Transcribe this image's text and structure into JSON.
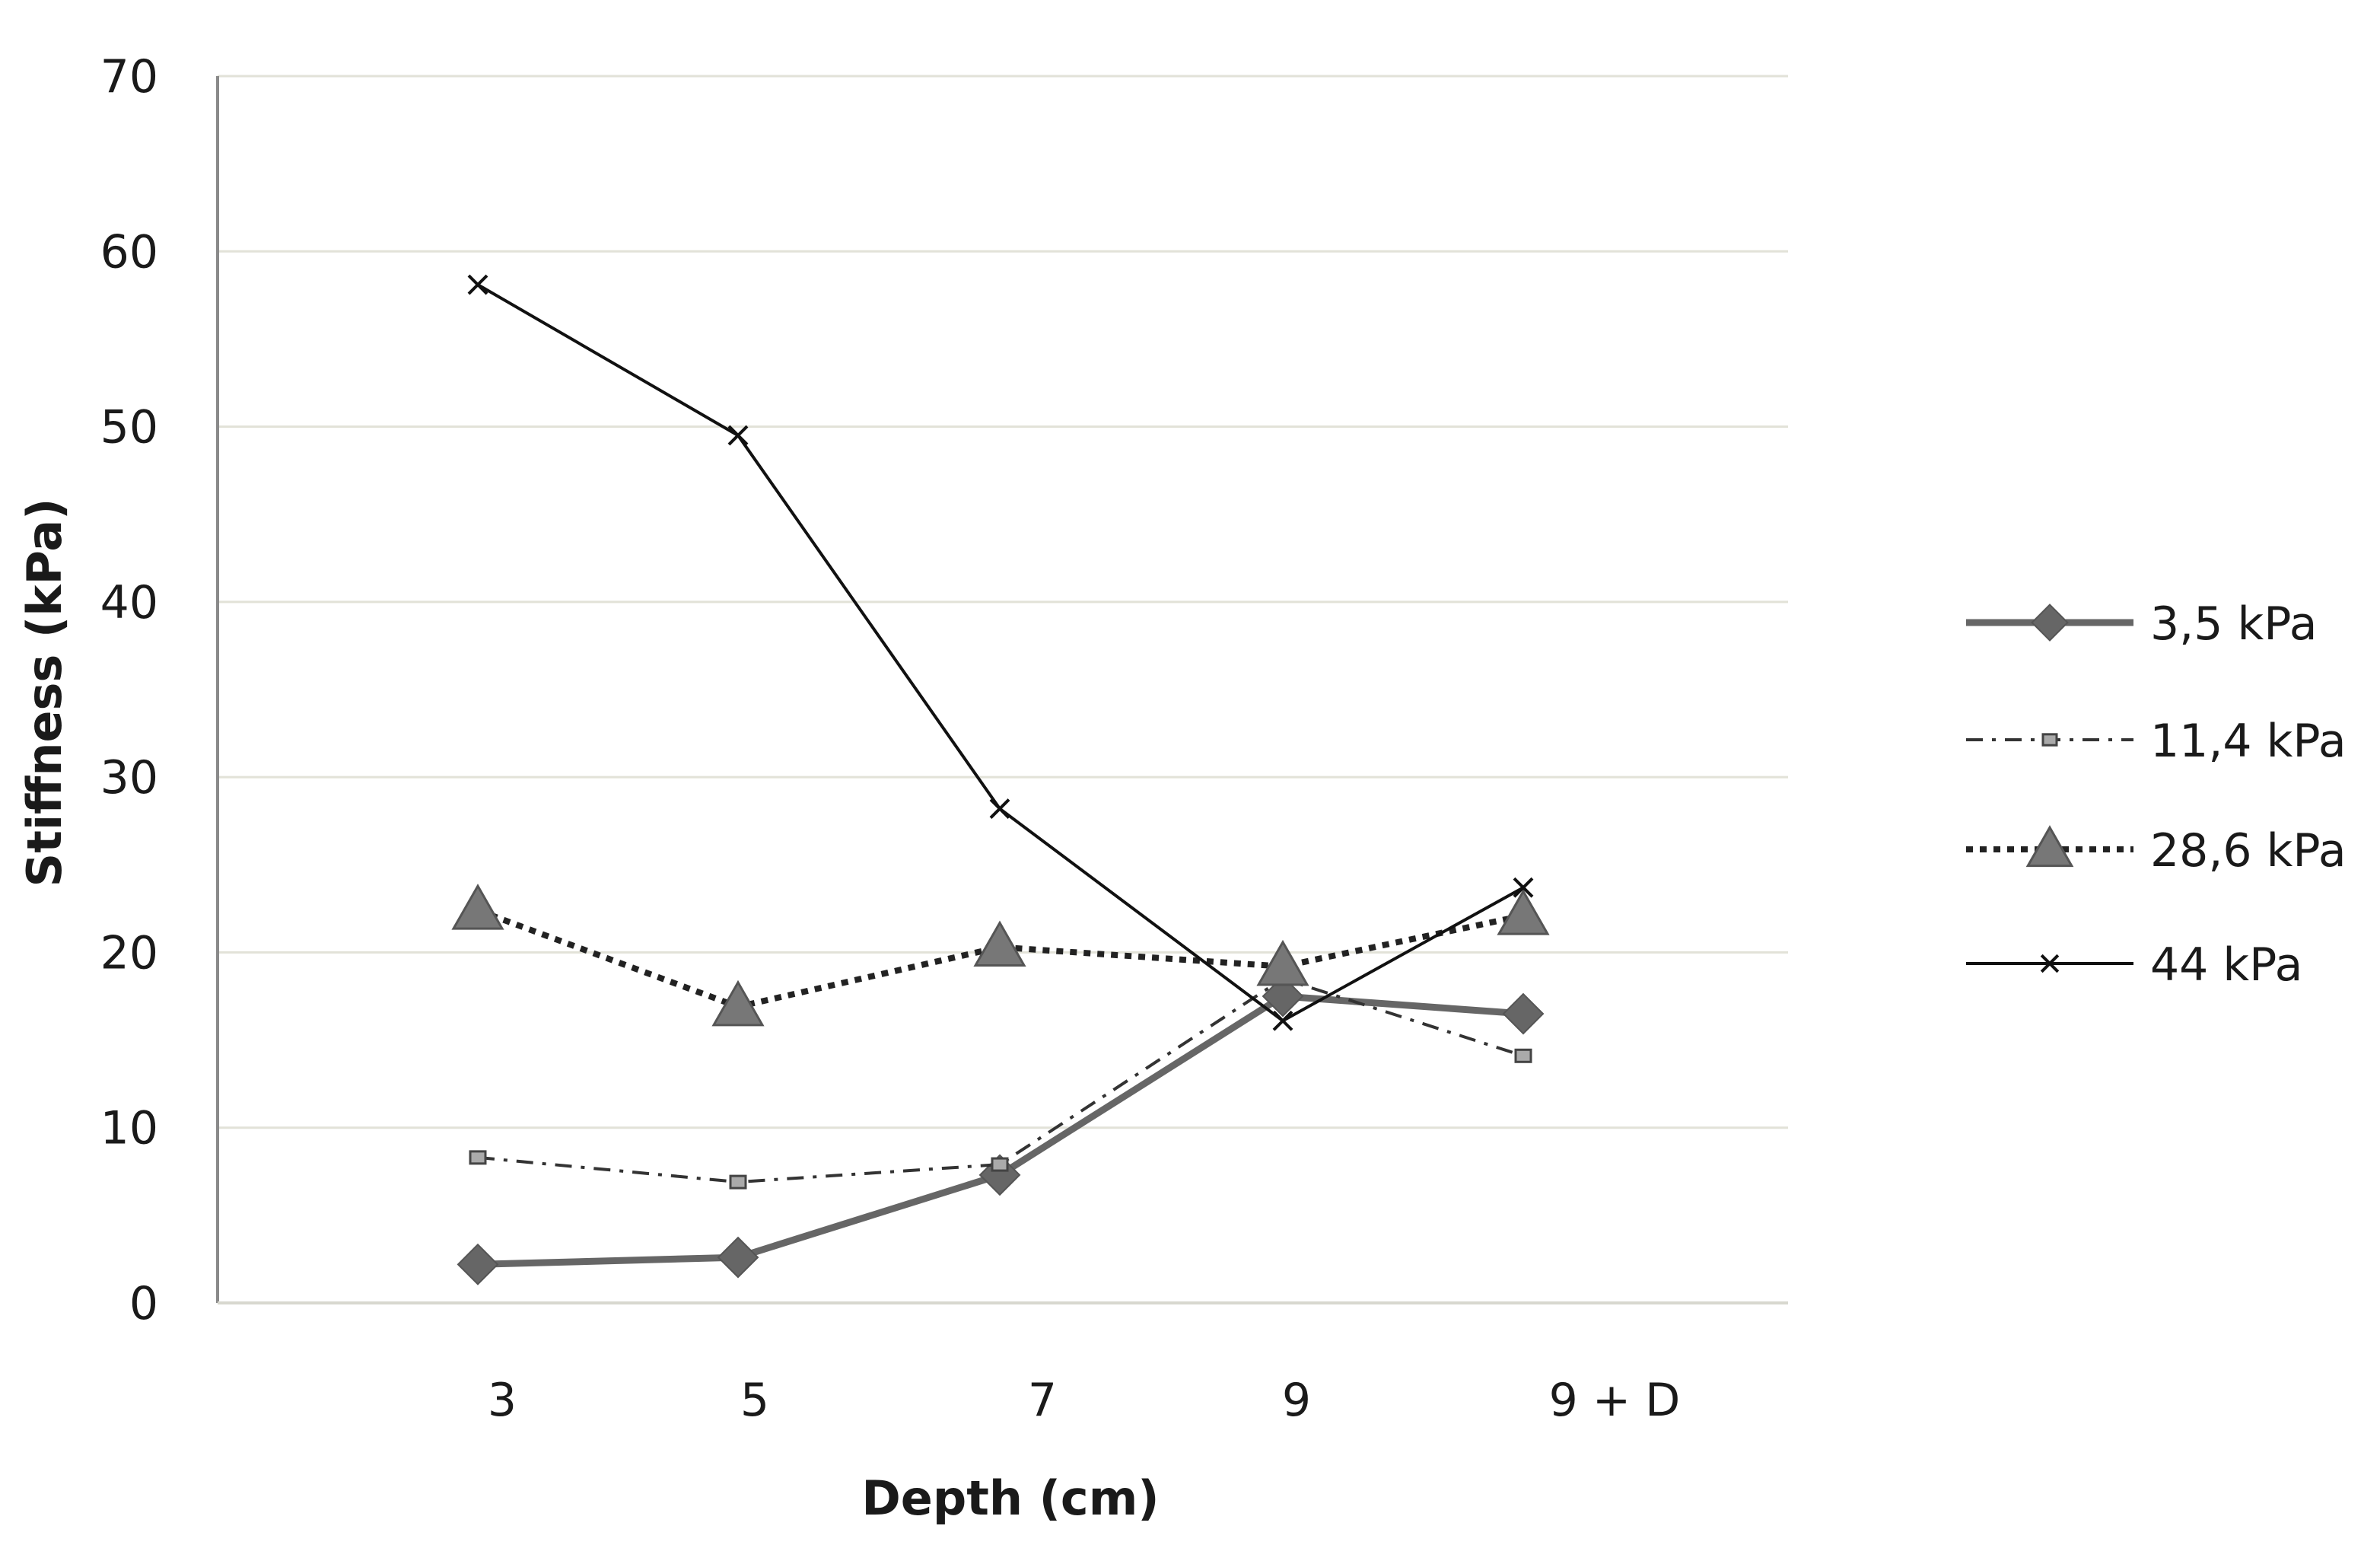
{
  "chart_data": {
    "type": "line",
    "title": "",
    "xlabel": "Depth (cm)",
    "ylabel": "Stiffness (kPa)",
    "categories": [
      "3",
      "5",
      "7",
      "9",
      "9 + D"
    ],
    "ylim": [
      0,
      70
    ],
    "ytick_step": 10,
    "grid": true,
    "legend_position": "right",
    "series": [
      {
        "name": "3,5 kPa",
        "values": [
          2.2,
          2.6,
          7.3,
          17.5,
          16.5
        ],
        "color": "#666666",
        "marker": "diamond",
        "line": "solid-thick"
      },
      {
        "name": "11,4 kPa",
        "values": [
          8.3,
          6.9,
          7.9,
          18.5,
          14.1
        ],
        "color": "#333333",
        "marker": "square",
        "line": "dash-dot"
      },
      {
        "name": "28,6 kPa",
        "values": [
          22.4,
          16.9,
          20.3,
          19.2,
          22.1
        ],
        "color": "#222222",
        "marker": "triangle",
        "line": "dotted"
      },
      {
        "name": "44 kPa",
        "values": [
          58.1,
          49.5,
          28.2,
          16.1,
          23.7
        ],
        "color": "#111111",
        "marker": "x",
        "line": "solid-thin"
      }
    ]
  }
}
